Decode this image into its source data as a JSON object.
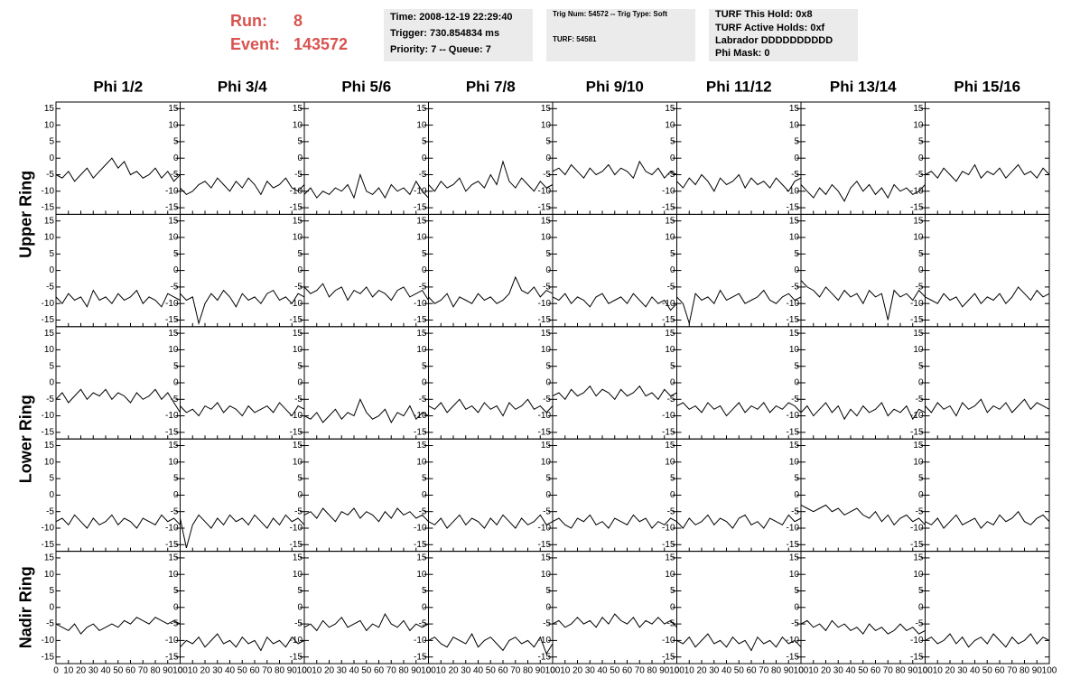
{
  "header": {
    "run_label": "Run:",
    "run": "8",
    "event_label": "Event:",
    "event": "143572",
    "boxes": [
      [
        "Time: 2008-12-19 22:29:40",
        "Trigger: 730.854834 ms",
        "Priority: 7 -- Queue: 7"
      ],
      [
        "Trig Num: 54572 -- Trig Type: Soft",
        "TURF: 54581"
      ],
      [
        "TURF This Hold: 0x8",
        "TURF Active Holds: 0xf",
        "Labrador DDDDDDDDDD",
        "Phi Mask: 0"
      ]
    ]
  },
  "chart_data": {
    "type": "line",
    "color": "#000000",
    "columns": [
      "Phi 1/2",
      "Phi 3/4",
      "Phi 5/6",
      "Phi 7/8",
      "Phi 9/10",
      "Phi 11/12",
      "Phi 13/14",
      "Phi 15/16"
    ],
    "row_labels": [
      "Upper Ring",
      "Lower Ring",
      "Nadir Ring"
    ],
    "xlim": [
      0,
      100
    ],
    "xticks": [
      0,
      10,
      20,
      30,
      40,
      50,
      60,
      70,
      80,
      90,
      100
    ],
    "ylim": [
      -17,
      17
    ],
    "yticks": [
      -15,
      -10,
      -5,
      0,
      5,
      10,
      15
    ],
    "x": [
      0,
      5,
      10,
      15,
      20,
      25,
      30,
      35,
      40,
      45,
      50,
      55,
      60,
      65,
      70,
      75,
      80,
      85,
      90,
      95,
      100
    ],
    "series": [
      {
        "values": [
          -5,
          -6,
          -4,
          -7,
          -5,
          -3,
          -6,
          -4,
          -2,
          0,
          -3,
          -1,
          -5,
          -4,
          -6,
          -5,
          -3,
          -6,
          -4,
          -7,
          -5
        ]
      },
      {
        "values": [
          -9,
          -11,
          -10,
          -8,
          -7,
          -9,
          -6,
          -8,
          -10,
          -7,
          -9,
          -6,
          -8,
          -11,
          -7,
          -9,
          -8,
          -6,
          -9,
          -10,
          -8
        ]
      },
      {
        "values": [
          -11,
          -9,
          -12,
          -10,
          -11,
          -9,
          -10,
          -8,
          -12,
          -5,
          -10,
          -11,
          -9,
          -12,
          -8,
          -10,
          -9,
          -11,
          -7,
          -10,
          -12
        ]
      },
      {
        "values": [
          -8,
          -10,
          -7,
          -9,
          -8,
          -6,
          -10,
          -8,
          -7,
          -9,
          -5,
          -8,
          -1,
          -7,
          -9,
          -6,
          -8,
          -10,
          -7,
          -9,
          -8
        ]
      },
      {
        "values": [
          -4,
          -3,
          -5,
          -2,
          -4,
          -6,
          -3,
          -5,
          -4,
          -2,
          -5,
          -3,
          -4,
          -6,
          -1,
          -4,
          -5,
          -3,
          -6,
          -4,
          -5
        ]
      },
      {
        "values": [
          -7,
          -9,
          -6,
          -8,
          -5,
          -7,
          -10,
          -6,
          -8,
          -7,
          -5,
          -9,
          -6,
          -8,
          -7,
          -9,
          -6,
          -8,
          -10,
          -7,
          -6
        ]
      },
      {
        "values": [
          -8,
          -10,
          -12,
          -9,
          -11,
          -8,
          -10,
          -13,
          -9,
          -7,
          -10,
          -8,
          -11,
          -9,
          -12,
          -8,
          -10,
          -9,
          -11,
          -10,
          -8
        ]
      },
      {
        "values": [
          -5,
          -4,
          -6,
          -3,
          -5,
          -7,
          -4,
          -5,
          -2,
          -6,
          -4,
          -5,
          -3,
          -6,
          -4,
          -2,
          -5,
          -4,
          -6,
          -3,
          -5
        ]
      },
      {
        "values": [
          -8,
          -10,
          -7,
          -9,
          -8,
          -11,
          -6,
          -9,
          -8,
          -10,
          -7,
          -9,
          -8,
          -6,
          -10,
          -8,
          -9,
          -11,
          -7,
          -8,
          -9
        ]
      },
      {
        "values": [
          -7,
          -9,
          -8,
          -16,
          -10,
          -7,
          -9,
          -6,
          -8,
          -11,
          -7,
          -9,
          -8,
          -10,
          -7,
          -6,
          -9,
          -8,
          -10,
          -7,
          -8
        ]
      },
      {
        "values": [
          -5,
          -7,
          -6,
          -4,
          -8,
          -6,
          -5,
          -9,
          -6,
          -7,
          -5,
          -8,
          -6,
          -7,
          -9,
          -6,
          -5,
          -8,
          -7,
          -6,
          -9
        ]
      },
      {
        "values": [
          -8,
          -10,
          -9,
          -7,
          -11,
          -8,
          -9,
          -10,
          -7,
          -9,
          -8,
          -10,
          -9,
          -7,
          -2,
          -6,
          -7,
          -5,
          -8,
          -6,
          -7
        ]
      },
      {
        "values": [
          -8,
          -9,
          -7,
          -10,
          -8,
          -9,
          -11,
          -8,
          -7,
          -10,
          -9,
          -8,
          -10,
          -7,
          -9,
          -11,
          -8,
          -10,
          -9,
          -12,
          -10
        ]
      },
      {
        "values": [
          -8,
          -10,
          -16,
          -7,
          -9,
          -8,
          -10,
          -6,
          -9,
          -8,
          -7,
          -10,
          -9,
          -8,
          -6,
          -9,
          -10,
          -8,
          -7,
          -9,
          -8
        ]
      },
      {
        "values": [
          -3,
          -5,
          -6,
          -8,
          -5,
          -7,
          -9,
          -6,
          -8,
          -7,
          -10,
          -6,
          -8,
          -7,
          -15,
          -6,
          -8,
          -7,
          -9,
          -6,
          -8
        ]
      },
      {
        "values": [
          -8,
          -9,
          -10,
          -7,
          -9,
          -8,
          -11,
          -9,
          -7,
          -10,
          -8,
          -9,
          -7,
          -10,
          -8,
          -5,
          -7,
          -9,
          -6,
          -8,
          -7
        ]
      },
      {
        "values": [
          -5,
          -3,
          -6,
          -4,
          -2,
          -5,
          -3,
          -4,
          -2,
          -5,
          -3,
          -4,
          -6,
          -3,
          -5,
          -4,
          -2,
          -5,
          -3,
          -6,
          -9
        ]
      },
      {
        "values": [
          -7,
          -9,
          -8,
          -10,
          -7,
          -8,
          -6,
          -9,
          -7,
          -8,
          -10,
          -7,
          -9,
          -8,
          -7,
          -9,
          -6,
          -8,
          -10,
          -7,
          -8
        ]
      },
      {
        "values": [
          -10,
          -11,
          -9,
          -12,
          -10,
          -8,
          -11,
          -9,
          -10,
          -5,
          -9,
          -11,
          -10,
          -8,
          -12,
          -9,
          -10,
          -7,
          -11,
          -9,
          -10
        ]
      },
      {
        "values": [
          -7,
          -8,
          -6,
          -9,
          -7,
          -5,
          -8,
          -7,
          -9,
          -6,
          -8,
          -7,
          -10,
          -6,
          -8,
          -7,
          -5,
          -8,
          -7,
          -9,
          -7
        ]
      },
      {
        "values": [
          -4,
          -3,
          -5,
          -2,
          -4,
          -3,
          -1,
          -4,
          -2,
          -3,
          -5,
          -2,
          -4,
          -3,
          -1,
          -4,
          -3,
          -5,
          -2,
          -4,
          -3
        ]
      },
      {
        "values": [
          -7,
          -6,
          -8,
          -7,
          -9,
          -6,
          -8,
          -7,
          -10,
          -8,
          -6,
          -9,
          -7,
          -8,
          -6,
          -9,
          -7,
          -8,
          -6,
          -7,
          -9
        ]
      },
      {
        "values": [
          -9,
          -7,
          -10,
          -8,
          -6,
          -9,
          -7,
          -11,
          -8,
          -10,
          -7,
          -9,
          -8,
          -6,
          -10,
          -8,
          -9,
          -7,
          -11,
          -8,
          -9
        ]
      },
      {
        "values": [
          -7,
          -9,
          -6,
          -8,
          -7,
          -10,
          -6,
          -8,
          -7,
          -5,
          -9,
          -7,
          -8,
          -6,
          -9,
          -7,
          -5,
          -8,
          -6,
          -7,
          -8
        ]
      },
      {
        "values": [
          -8,
          -7,
          -9,
          -6,
          -8,
          -10,
          -7,
          -9,
          -8,
          -6,
          -9,
          -7,
          -8,
          -10,
          -7,
          -8,
          -9,
          -6,
          -8,
          -7,
          -9
        ]
      },
      {
        "values": [
          -7,
          -16,
          -9,
          -6,
          -8,
          -10,
          -7,
          -9,
          -6,
          -8,
          -7,
          -9,
          -6,
          -8,
          -10,
          -7,
          -9,
          -6,
          -8,
          -7,
          -9
        ]
      },
      {
        "values": [
          -6,
          -5,
          -7,
          -4,
          -6,
          -8,
          -5,
          -6,
          -4,
          -7,
          -5,
          -6,
          -8,
          -5,
          -7,
          -4,
          -6,
          -5,
          -7,
          -6,
          -8
        ]
      },
      {
        "values": [
          -8,
          -9,
          -7,
          -10,
          -8,
          -6,
          -9,
          -7,
          -8,
          -10,
          -7,
          -9,
          -6,
          -8,
          -10,
          -7,
          -9,
          -8,
          -6,
          -9,
          -8
        ]
      },
      {
        "values": [
          -8,
          -7,
          -9,
          -10,
          -7,
          -8,
          -6,
          -9,
          -8,
          -10,
          -7,
          -8,
          -9,
          -6,
          -8,
          -7,
          -10,
          -8,
          -9,
          -7,
          -8
        ]
      },
      {
        "values": [
          -8,
          -10,
          -7,
          -9,
          -8,
          -6,
          -9,
          -7,
          -8,
          -10,
          -7,
          -6,
          -9,
          -8,
          -10,
          -7,
          -8,
          -9,
          -6,
          -8,
          -7
        ]
      },
      {
        "values": [
          -3,
          -4,
          -5,
          -4,
          -3,
          -5,
          -4,
          -6,
          -5,
          -4,
          -6,
          -7,
          -5,
          -8,
          -6,
          -9,
          -7,
          -6,
          -8,
          -7,
          -9
        ]
      },
      {
        "values": [
          -8,
          -9,
          -7,
          -10,
          -8,
          -6,
          -9,
          -8,
          -7,
          -10,
          -8,
          -9,
          -6,
          -8,
          -7,
          -5,
          -8,
          -9,
          -7,
          -6,
          -8
        ]
      },
      {
        "values": [
          -5,
          -6,
          -7,
          -5,
          -8,
          -6,
          -5,
          -7,
          -6,
          -5,
          -6,
          -4,
          -5,
          -3,
          -4,
          -5,
          -3,
          -4,
          -5,
          -4,
          -5
        ]
      },
      {
        "values": [
          -12,
          -10,
          -11,
          -9,
          -12,
          -10,
          -8,
          -11,
          -10,
          -12,
          -9,
          -11,
          -10,
          -13,
          -9,
          -11,
          -10,
          -12,
          -9,
          -11,
          -10
        ]
      },
      {
        "values": [
          -6,
          -5,
          -7,
          -4,
          -6,
          -5,
          -3,
          -6,
          -5,
          -4,
          -7,
          -5,
          -6,
          -2,
          -5,
          -6,
          -4,
          -7,
          -5,
          -6,
          -5
        ]
      },
      {
        "values": [
          -10,
          -9,
          -11,
          -12,
          -9,
          -10,
          -11,
          -8,
          -12,
          -10,
          -9,
          -11,
          -13,
          -10,
          -9,
          -11,
          -10,
          -12,
          -9,
          -14,
          -11
        ]
      },
      {
        "values": [
          -5,
          -4,
          -6,
          -5,
          -3,
          -5,
          -4,
          -6,
          -3,
          -5,
          -2,
          -4,
          -5,
          -3,
          -6,
          -4,
          -5,
          -3,
          -5,
          -4,
          -6
        ]
      },
      {
        "values": [
          -10,
          -11,
          -9,
          -12,
          -10,
          -8,
          -11,
          -10,
          -12,
          -9,
          -11,
          -10,
          -13,
          -9,
          -11,
          -10,
          -12,
          -9,
          -11,
          -10,
          -12
        ]
      },
      {
        "values": [
          -5,
          -4,
          -6,
          -5,
          -7,
          -4,
          -6,
          -5,
          -7,
          -6,
          -8,
          -5,
          -7,
          -6,
          -8,
          -7,
          -5,
          -7,
          -6,
          -8,
          -7
        ]
      },
      {
        "values": [
          -10,
          -9,
          -11,
          -10,
          -8,
          -11,
          -9,
          -12,
          -10,
          -9,
          -11,
          -8,
          -10,
          -12,
          -9,
          -11,
          -10,
          -8,
          -11,
          -9,
          -10
        ]
      }
    ]
  }
}
